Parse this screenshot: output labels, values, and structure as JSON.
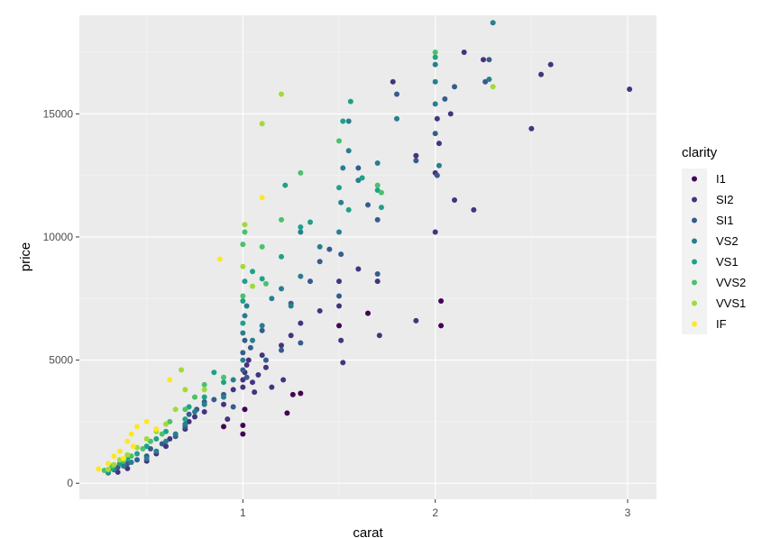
{
  "chart_data": {
    "type": "scatter",
    "xlabel": "carat",
    "ylabel": "price",
    "xlim": [
      0.15,
      3.15
    ],
    "ylim": [
      -650,
      19000
    ],
    "x_ticks": [
      1,
      2,
      3
    ],
    "y_ticks": [
      0,
      5000,
      10000,
      15000
    ],
    "x_tick_labels": [
      "1",
      "2",
      "3"
    ],
    "y_tick_labels": [
      "0",
      "5000",
      "10000",
      "15000"
    ],
    "grid": true,
    "legend": {
      "title": "clarity",
      "placement": "right",
      "entries": [
        "I1",
        "SI2",
        "SI1",
        "VS2",
        "VS1",
        "VVS2",
        "VVS1",
        "IF"
      ]
    },
    "colors": {
      "I1": "#440154",
      "SI2": "#46337e",
      "SI1": "#365c8d",
      "VS2": "#277f8e",
      "VS1": "#1fa187",
      "VVS2": "#4ac16d",
      "VVS1": "#a0da39",
      "IF": "#fde725"
    },
    "series": [
      {
        "name": "I1",
        "points": [
          [
            0.9,
            2300
          ],
          [
            1.0,
            2000
          ],
          [
            1.0,
            2350
          ],
          [
            1.01,
            3000
          ],
          [
            1.23,
            2850
          ],
          [
            1.5,
            6400
          ],
          [
            1.65,
            6900
          ],
          [
            2.03,
            7400
          ],
          [
            2.03,
            6400
          ],
          [
            1.26,
            3600
          ],
          [
            1.3,
            3650
          ]
        ]
      },
      {
        "name": "SI2",
        "points": [
          [
            0.35,
            450
          ],
          [
            0.4,
            600
          ],
          [
            0.5,
            900
          ],
          [
            0.55,
            1200
          ],
          [
            0.6,
            1500
          ],
          [
            0.62,
            1800
          ],
          [
            0.7,
            2200
          ],
          [
            0.72,
            2500
          ],
          [
            0.75,
            2700
          ],
          [
            0.8,
            2900
          ],
          [
            0.9,
            3200
          ],
          [
            0.92,
            2600
          ],
          [
            0.95,
            3800
          ],
          [
            1.0,
            3900
          ],
          [
            1.0,
            4200
          ],
          [
            1.01,
            4500
          ],
          [
            1.02,
            4800
          ],
          [
            1.03,
            5000
          ],
          [
            1.05,
            4100
          ],
          [
            1.06,
            3700
          ],
          [
            1.08,
            4400
          ],
          [
            1.1,
            5200
          ],
          [
            1.12,
            4700
          ],
          [
            1.15,
            3900
          ],
          [
            1.2,
            5600
          ],
          [
            1.21,
            4200
          ],
          [
            1.25,
            6000
          ],
          [
            1.3,
            6500
          ],
          [
            1.4,
            7000
          ],
          [
            1.5,
            7200
          ],
          [
            1.5,
            8200
          ],
          [
            1.51,
            5800
          ],
          [
            1.52,
            4900
          ],
          [
            1.6,
            8700
          ],
          [
            1.7,
            8200
          ],
          [
            1.71,
            6000
          ],
          [
            1.9,
            6600
          ],
          [
            2.0,
            10200
          ],
          [
            2.0,
            12600
          ],
          [
            2.01,
            14800
          ],
          [
            2.02,
            13800
          ],
          [
            2.1,
            11500
          ],
          [
            2.15,
            17500
          ],
          [
            2.2,
            11100
          ],
          [
            2.25,
            17200
          ],
          [
            2.5,
            14400
          ],
          [
            2.55,
            16600
          ],
          [
            2.6,
            17000
          ],
          [
            3.01,
            16000
          ],
          [
            1.9,
            13300
          ],
          [
            1.78,
            16300
          ],
          [
            2.08,
            15000
          ]
        ]
      },
      {
        "name": "SI1",
        "points": [
          [
            0.3,
            500
          ],
          [
            0.35,
            650
          ],
          [
            0.4,
            800
          ],
          [
            0.45,
            950
          ],
          [
            0.5,
            1100
          ],
          [
            0.52,
            1400
          ],
          [
            0.58,
            1600
          ],
          [
            0.65,
            1900
          ],
          [
            0.7,
            2300
          ],
          [
            0.72,
            2800
          ],
          [
            0.76,
            3000
          ],
          [
            0.8,
            3300
          ],
          [
            0.85,
            3400
          ],
          [
            0.9,
            3600
          ],
          [
            0.95,
            3100
          ],
          [
            1.0,
            4600
          ],
          [
            1.0,
            5300
          ],
          [
            1.01,
            5800
          ],
          [
            1.02,
            4300
          ],
          [
            1.04,
            5500
          ],
          [
            1.1,
            6200
          ],
          [
            1.12,
            5000
          ],
          [
            1.2,
            5400
          ],
          [
            1.25,
            7300
          ],
          [
            1.3,
            5700
          ],
          [
            1.35,
            8200
          ],
          [
            1.4,
            9000
          ],
          [
            1.45,
            9500
          ],
          [
            1.5,
            7600
          ],
          [
            1.51,
            9300
          ],
          [
            1.6,
            12800
          ],
          [
            1.65,
            11300
          ],
          [
            1.7,
            10700
          ],
          [
            1.8,
            15800
          ],
          [
            1.9,
            13100
          ],
          [
            2.0,
            14200
          ],
          [
            2.01,
            12500
          ],
          [
            2.05,
            15600
          ],
          [
            2.1,
            16100
          ],
          [
            2.28,
            17200
          ],
          [
            2.26,
            16300
          ],
          [
            1.7,
            8500
          ]
        ]
      },
      {
        "name": "VS2",
        "points": [
          [
            0.3,
            420
          ],
          [
            0.33,
            550
          ],
          [
            0.38,
            700
          ],
          [
            0.42,
            850
          ],
          [
            0.5,
            1000
          ],
          [
            0.55,
            1300
          ],
          [
            0.6,
            1700
          ],
          [
            0.65,
            2000
          ],
          [
            0.7,
            2400
          ],
          [
            0.75,
            2900
          ],
          [
            0.8,
            3200
          ],
          [
            0.9,
            3500
          ],
          [
            0.95,
            4200
          ],
          [
            1.0,
            5000
          ],
          [
            1.0,
            6100
          ],
          [
            1.01,
            6800
          ],
          [
            1.02,
            7200
          ],
          [
            1.05,
            5800
          ],
          [
            1.1,
            6400
          ],
          [
            1.15,
            7500
          ],
          [
            1.2,
            7900
          ],
          [
            1.25,
            7200
          ],
          [
            1.3,
            8400
          ],
          [
            1.4,
            9600
          ],
          [
            1.5,
            10200
          ],
          [
            1.51,
            11400
          ],
          [
            1.52,
            12800
          ],
          [
            1.55,
            13500
          ],
          [
            1.6,
            12300
          ],
          [
            1.7,
            13000
          ],
          [
            1.8,
            14800
          ],
          [
            2.0,
            15400
          ],
          [
            2.0,
            17000
          ],
          [
            2.0,
            16300
          ],
          [
            2.02,
            12900
          ],
          [
            2.3,
            18700
          ],
          [
            2.28,
            16400
          ],
          [
            1.55,
            14700
          ],
          [
            1.3,
            10200
          ]
        ]
      },
      {
        "name": "VS1",
        "points": [
          [
            0.3,
            480
          ],
          [
            0.32,
            600
          ],
          [
            0.36,
            800
          ],
          [
            0.4,
            1000
          ],
          [
            0.45,
            1200
          ],
          [
            0.5,
            1500
          ],
          [
            0.55,
            1800
          ],
          [
            0.6,
            2100
          ],
          [
            0.7,
            2600
          ],
          [
            0.72,
            3100
          ],
          [
            0.8,
            3500
          ],
          [
            0.85,
            4500
          ],
          [
            0.9,
            4100
          ],
          [
            1.0,
            6500
          ],
          [
            1.0,
            7400
          ],
          [
            1.01,
            8200
          ],
          [
            1.05,
            8600
          ],
          [
            1.1,
            8300
          ],
          [
            1.2,
            9200
          ],
          [
            1.22,
            12100
          ],
          [
            1.3,
            10400
          ],
          [
            1.35,
            10600
          ],
          [
            1.5,
            12000
          ],
          [
            1.52,
            14700
          ],
          [
            1.56,
            15500
          ],
          [
            1.62,
            12400
          ],
          [
            1.7,
            11900
          ],
          [
            1.72,
            11200
          ],
          [
            1.55,
            11100
          ],
          [
            2.0,
            17300
          ]
        ]
      },
      {
        "name": "VVS2",
        "points": [
          [
            0.28,
            520
          ],
          [
            0.32,
            700
          ],
          [
            0.38,
            900
          ],
          [
            0.42,
            1100
          ],
          [
            0.48,
            1400
          ],
          [
            0.52,
            1700
          ],
          [
            0.58,
            2000
          ],
          [
            0.62,
            2500
          ],
          [
            0.7,
            3000
          ],
          [
            0.75,
            3500
          ],
          [
            0.8,
            4000
          ],
          [
            0.9,
            4300
          ],
          [
            1.0,
            7600
          ],
          [
            1.0,
            9700
          ],
          [
            1.01,
            10200
          ],
          [
            1.1,
            9600
          ],
          [
            1.2,
            10700
          ],
          [
            1.3,
            12600
          ],
          [
            1.5,
            13900
          ],
          [
            1.7,
            12100
          ],
          [
            1.72,
            11800
          ],
          [
            2.0,
            17500
          ],
          [
            1.12,
            8100
          ]
        ]
      },
      {
        "name": "VVS1",
        "points": [
          [
            0.3,
            560
          ],
          [
            0.33,
            750
          ],
          [
            0.36,
            950
          ],
          [
            0.4,
            1150
          ],
          [
            0.45,
            1450
          ],
          [
            0.5,
            1800
          ],
          [
            0.55,
            2100
          ],
          [
            0.6,
            2400
          ],
          [
            0.65,
            3000
          ],
          [
            0.68,
            4600
          ],
          [
            0.7,
            3800
          ],
          [
            0.8,
            3800
          ],
          [
            1.0,
            8800
          ],
          [
            1.01,
            10500
          ],
          [
            1.1,
            14600
          ],
          [
            1.2,
            15800
          ],
          [
            2.3,
            16100
          ],
          [
            1.05,
            8000
          ]
        ]
      },
      {
        "name": "IF",
        "points": [
          [
            0.25,
            580
          ],
          [
            0.3,
            800
          ],
          [
            0.33,
            1100
          ],
          [
            0.36,
            1300
          ],
          [
            0.4,
            1700
          ],
          [
            0.42,
            2000
          ],
          [
            0.45,
            2300
          ],
          [
            0.5,
            2500
          ],
          [
            0.55,
            2200
          ],
          [
            0.62,
            4200
          ],
          [
            0.88,
            9100
          ],
          [
            1.1,
            11600
          ],
          [
            0.38,
            1000
          ],
          [
            0.43,
            1500
          ]
        ]
      }
    ]
  }
}
